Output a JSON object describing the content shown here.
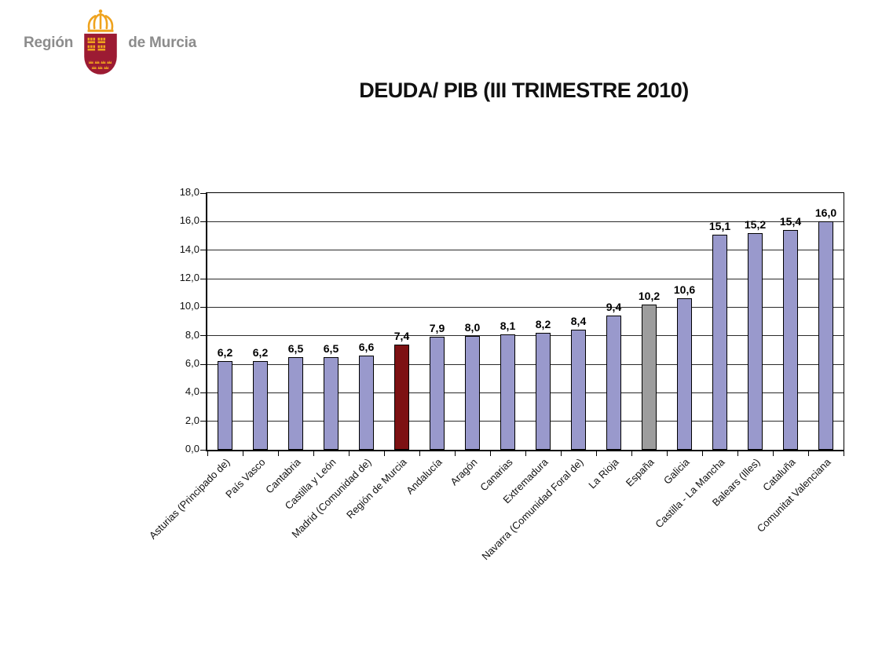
{
  "logo": {
    "region_text": "Región",
    "de_murcia_text": "de Murcia",
    "colors": {
      "text_gray": "#8C8C8C",
      "shield": "#9C1B33",
      "gold": "#EFA31E"
    }
  },
  "chart_data": {
    "type": "bar",
    "title": "DEUDA/ PIB (III TRIMESTRE 2010)",
    "categories": [
      "Asturias (Principado de)",
      "País Vasco",
      "Cantabria",
      "Castilla y León",
      "Madrid (Comunidad de)",
      "Región de Murcia",
      "Andalucía",
      "Aragón",
      "Canarias",
      "Extremadura",
      "Navarra (Comunidad Foral de)",
      "La Rioja",
      "España",
      "Galicia",
      "Castilla - La Mancha",
      "Balears (Illes)",
      "Cataluña",
      "Comunitat Valenciana"
    ],
    "values": [
      6.2,
      6.2,
      6.5,
      6.5,
      6.6,
      7.4,
      7.9,
      8.0,
      8.1,
      8.2,
      8.4,
      9.4,
      10.2,
      10.6,
      15.1,
      15.2,
      15.4,
      16.0
    ],
    "value_labels": [
      "6,2",
      "6,2",
      "6,5",
      "6,5",
      "6,6",
      "7,4",
      "7,9",
      "8,0",
      "8,1",
      "8,2",
      "8,4",
      "9,4",
      "10,2",
      "10,6",
      "15,1",
      "15,2",
      "15,4",
      "16,0"
    ],
    "ytick_labels": [
      "0,0",
      "2,0",
      "4,0",
      "6,0",
      "8,0",
      "10,0",
      "12,0",
      "14,0",
      "16,0",
      "18,0"
    ],
    "ylim": [
      0,
      18
    ],
    "ytick_step": 2,
    "grid": true,
    "legend_position": "none",
    "xlabel": "",
    "ylabel": "",
    "highlight_index": 5,
    "espana_index": 12,
    "colors": {
      "bar_default": "#9999CC",
      "bar_highlight": "#7D1113",
      "bar_espana": "#9D9D9D",
      "bar_border": "#000000",
      "gridline": "#2a2a2a"
    }
  }
}
